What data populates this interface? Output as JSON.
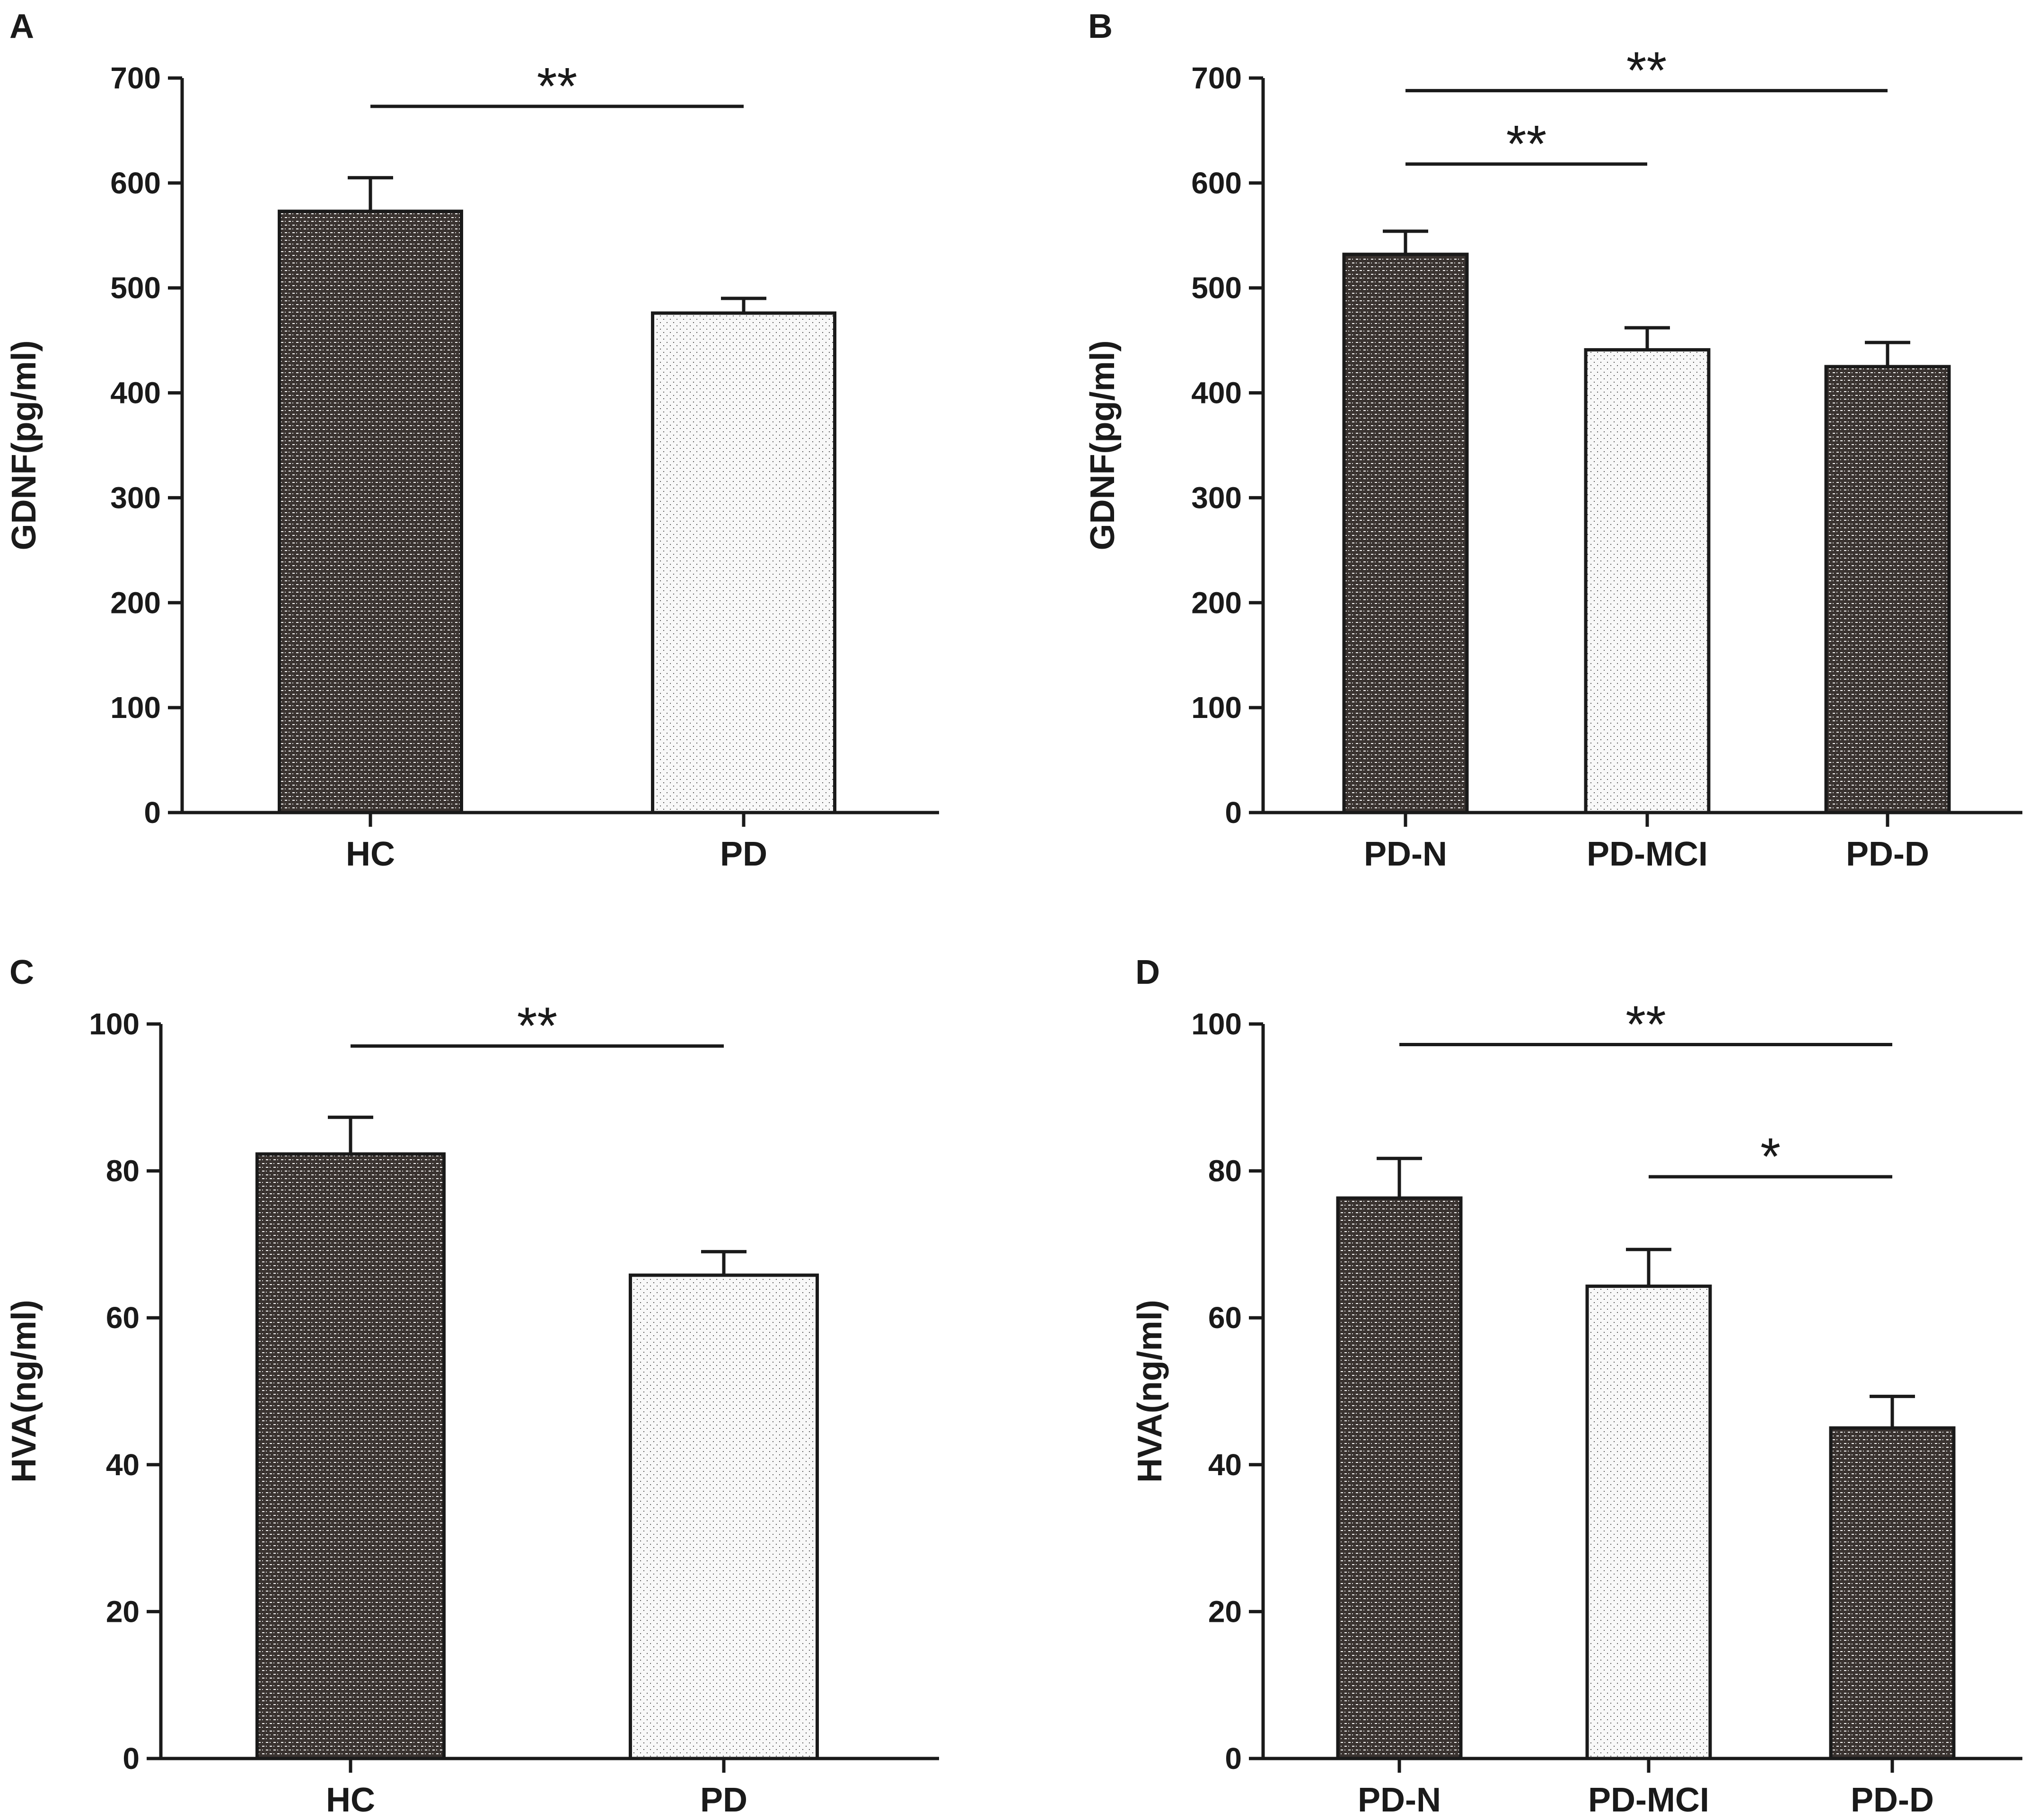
{
  "chart_data": [
    {
      "type": "bar",
      "panel": "A",
      "ylabel": "GDNF(pg/ml)",
      "ylim": [
        0,
        700
      ],
      "yticks": [
        0,
        100,
        200,
        300,
        400,
        500,
        600,
        700
      ],
      "categories": [
        "HC",
        "PD"
      ],
      "values": [
        573,
        476
      ],
      "errors": [
        32,
        14
      ],
      "patterns": [
        "dense",
        "light"
      ],
      "significance": [
        {
          "from": 0,
          "to": 1,
          "label": "**",
          "y": 673
        }
      ]
    },
    {
      "type": "bar",
      "panel": "B",
      "ylabel": "GDNF(pg/ml)",
      "ylim": [
        0,
        700
      ],
      "yticks": [
        0,
        100,
        200,
        300,
        400,
        500,
        600,
        700
      ],
      "categories": [
        "PD-N",
        "PD-MCI",
        "PD-D"
      ],
      "values": [
        532,
        441,
        425
      ],
      "errors": [
        22,
        21,
        23
      ],
      "patterns": [
        "dense",
        "light",
        "dense"
      ],
      "significance": [
        {
          "from": 0,
          "to": 2,
          "label": "**",
          "y": 688
        },
        {
          "from": 0,
          "to": 1,
          "label": "**",
          "y": 618
        }
      ]
    },
    {
      "type": "bar",
      "panel": "C",
      "ylabel": "HVA(ng/ml)",
      "ylim": [
        0,
        100
      ],
      "yticks": [
        0,
        20,
        40,
        60,
        80,
        100
      ],
      "categories": [
        "HC",
        "PD"
      ],
      "values": [
        82.3,
        65.8
      ],
      "errors": [
        5.0,
        3.2
      ],
      "patterns": [
        "dense",
        "light"
      ],
      "significance": [
        {
          "from": 0,
          "to": 1,
          "label": "**",
          "y": 97
        }
      ]
    },
    {
      "type": "bar",
      "panel": "D",
      "ylabel": "HVA(ng/ml)",
      "ylim": [
        0,
        100
      ],
      "yticks": [
        0,
        20,
        40,
        60,
        80,
        100
      ],
      "categories": [
        "PD-N",
        "PD-MCI",
        "PD-D"
      ],
      "values": [
        76.3,
        64.3,
        45.0
      ],
      "errors": [
        5.4,
        5.0,
        4.3
      ],
      "patterns": [
        "dense",
        "light",
        "dense"
      ],
      "significance": [
        {
          "from": 0,
          "to": 2,
          "label": "**",
          "y": 97.2
        },
        {
          "from": 1,
          "to": 2,
          "label": "*",
          "y": 79.2
        }
      ]
    }
  ]
}
